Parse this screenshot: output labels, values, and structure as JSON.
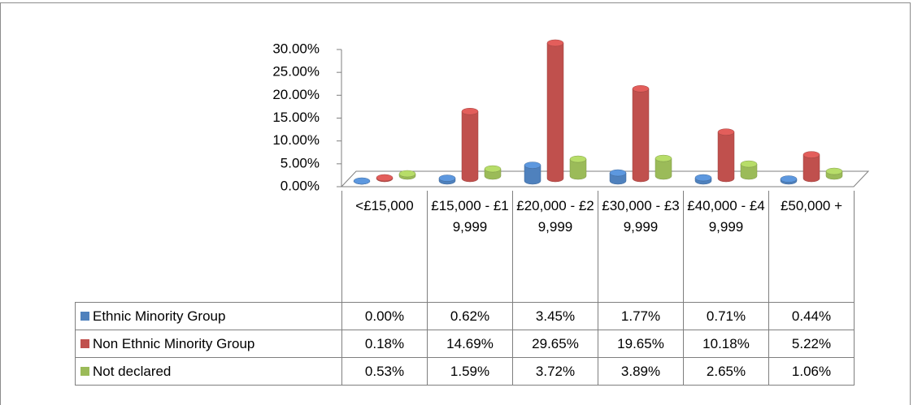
{
  "chart_data": {
    "type": "bar",
    "categories": [
      "<£15,000",
      "£15,000 - £19,999",
      "£20,000 - £29,999",
      "£30,000 - £39,999",
      "£40,000 - £49,999",
      "£50,000 +"
    ],
    "series": [
      {
        "name": "Ethnic Minority Group",
        "color": "#4f81bd",
        "values": [
          0,
          0.62,
          3.45,
          1.77,
          0.71,
          0.44
        ],
        "value_labels": [
          "0.00%",
          "0.62%",
          "3.45%",
          "1.77%",
          "0.71%",
          "0.44%"
        ]
      },
      {
        "name": "Non Ethnic Minority Group",
        "color": "#c0504d",
        "values": [
          0.18,
          14.69,
          29.65,
          19.65,
          10.18,
          5.22
        ],
        "value_labels": [
          "0.18%",
          "14.69%",
          "29.65%",
          "19.65%",
          "10.18%",
          "5.22%"
        ]
      },
      {
        "name": "Not declared",
        "color": "#9bbb59",
        "values": [
          0.53,
          1.59,
          3.72,
          3.89,
          2.65,
          1.06
        ],
        "value_labels": [
          "0.53%",
          "1.59%",
          "3.72%",
          "3.89%",
          "2.65%",
          "1.06%"
        ]
      }
    ],
    "ylim": [
      0,
      30
    ],
    "yticks": [
      {
        "value": 0,
        "label": "0.00%"
      },
      {
        "value": 5,
        "label": "5.00%"
      },
      {
        "value": 10,
        "label": "10.00%"
      },
      {
        "value": 15,
        "label": "15.00%"
      },
      {
        "value": 20,
        "label": "20.00%"
      },
      {
        "value": 25,
        "label": "25.00%"
      },
      {
        "value": 30,
        "label": "30.00%"
      }
    ]
  }
}
